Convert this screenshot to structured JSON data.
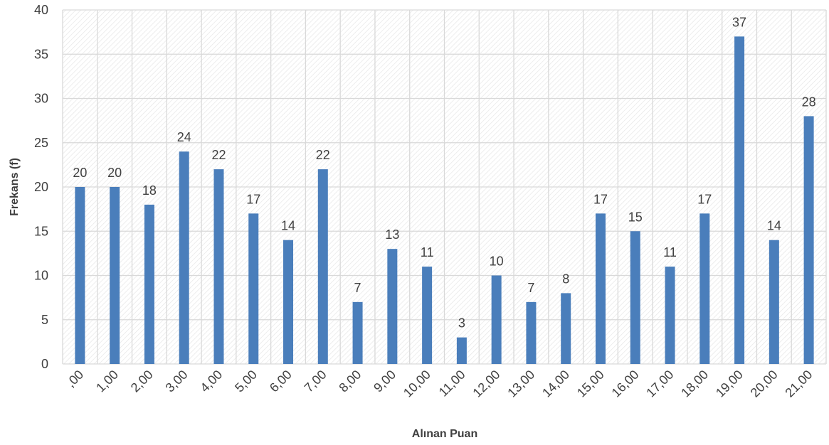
{
  "chart_data": {
    "type": "bar",
    "xlabel": "Alınan Puan",
    "ylabel": "Frekans (f)",
    "categories": [
      ",00",
      "1,00",
      "2,00",
      "3,00",
      "4,00",
      "5,00",
      "6,00",
      "7,00",
      "8,00",
      "9,00",
      "10,00",
      "11,00",
      "12,00",
      "13,00",
      "14,00",
      "15,00",
      "16,00",
      "17,00",
      "18,00",
      "19,00",
      "20,00",
      "21,00"
    ],
    "values": [
      20,
      20,
      18,
      24,
      22,
      17,
      14,
      22,
      7,
      13,
      11,
      3,
      10,
      7,
      8,
      17,
      15,
      11,
      17,
      37,
      14,
      28
    ],
    "ylim": [
      0,
      40
    ],
    "yticks": [
      "0",
      "5",
      "10",
      "15",
      "20",
      "25",
      "30",
      "35",
      "40"
    ],
    "grid": true,
    "legend": "none",
    "colors": {
      "bar": "#4a7ebb",
      "grid": "#d9d9d9",
      "hatch": "#e6e6e6",
      "text": "#404040"
    }
  }
}
